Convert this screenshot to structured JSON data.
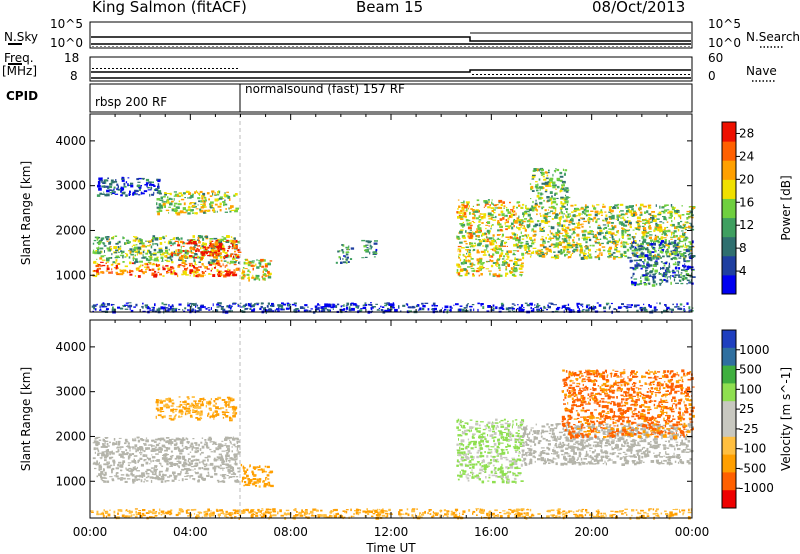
{
  "header": {
    "station": "King Salmon (fitACF)",
    "beam": "Beam 15",
    "date": "08/Oct/2013"
  },
  "sky_panel": {
    "left_label": "N.Sky",
    "left_ticks": [
      "10^5",
      "10^0"
    ],
    "right_label": "N.Search",
    "right_ticks": [
      "10^5",
      "10^0"
    ]
  },
  "freq_panel": {
    "left_label_1": "Freq.",
    "left_label_2": "[MHz]",
    "left_ticks": [
      "18",
      "8"
    ],
    "right_label": "Nave",
    "right_ticks": [
      "60",
      "0"
    ]
  },
  "cpid": {
    "label": "CPID",
    "segments": [
      "rbsp 200 RF",
      "normalsound (fast) 157 RF"
    ]
  },
  "x_axis": {
    "title": "Time UT",
    "ticks": [
      "00:00",
      "04:00",
      "08:00",
      "12:00",
      "16:00",
      "20:00",
      "00:00"
    ]
  },
  "colors": {
    "power_scale": [
      "#0000f0",
      "#1f3fa0",
      "#2f6f6f",
      "#3f9f60",
      "#6fcf3f",
      "#f0e000",
      "#ffa000",
      "#ff6000",
      "#ee1000"
    ],
    "velocity_scale": [
      "#ee0000",
      "#ff6000",
      "#ff9f00",
      "#ffbf40",
      "#c8c8c0",
      "#c8c8c0",
      "#8fdf50",
      "#3faf3f",
      "#2f6f9f",
      "#1f3fbf"
    ],
    "ground_scatter": "#b4b4aa"
  },
  "chart_data": [
    {
      "type": "heatmap",
      "title": "",
      "xlabel": "Time UT",
      "ylabel": "Slant Range [km]",
      "xlim": [
        "00:00",
        "24:00"
      ],
      "ylim": [
        180,
        4600
      ],
      "yticks": [
        1000,
        2000,
        3000,
        4000
      ],
      "colorbar": {
        "label": "Power [dB]",
        "ticks": [
          4,
          8,
          12,
          16,
          20,
          24,
          28
        ],
        "range": [
          0,
          30
        ]
      },
      "regions": [
        {
          "t0": 0.1,
          "t1": 5.9,
          "r0": 1000,
          "r1": 1300,
          "value": 24
        },
        {
          "t0": 0.1,
          "t1": 5.9,
          "r0": 1300,
          "r1": 1900,
          "value": 14
        },
        {
          "t0": 3.2,
          "t1": 5.9,
          "r0": 1400,
          "r1": 1800,
          "value": 26
        },
        {
          "t0": 2.6,
          "t1": 5.8,
          "r0": 2400,
          "r1": 2900,
          "value": 16
        },
        {
          "t0": 0.2,
          "t1": 2.8,
          "r0": 2800,
          "r1": 3200,
          "value": 5
        },
        {
          "t0": 6.0,
          "t1": 7.2,
          "r0": 900,
          "r1": 1400,
          "value": 18
        },
        {
          "t0": 9.8,
          "t1": 10.4,
          "r0": 1300,
          "r1": 1700,
          "value": 10
        },
        {
          "t0": 10.8,
          "t1": 11.4,
          "r0": 1400,
          "r1": 1800,
          "value": 10
        },
        {
          "t0": 14.6,
          "t1": 17.2,
          "r0": 1000,
          "r1": 2700,
          "value": 18
        },
        {
          "t0": 17.2,
          "t1": 24.0,
          "r0": 1400,
          "r1": 2600,
          "value": 16
        },
        {
          "t0": 17.5,
          "t1": 19.0,
          "r0": 2600,
          "r1": 3400,
          "value": 14
        },
        {
          "t0": 21.5,
          "t1": 24.0,
          "r0": 800,
          "r1": 1800,
          "value": 8
        },
        {
          "t0": 0.0,
          "t1": 24.0,
          "r0": 200,
          "r1": 400,
          "value": 4
        }
      ]
    },
    {
      "type": "heatmap",
      "title": "",
      "xlabel": "Time UT",
      "ylabel": "Slant Range [km]",
      "xlim": [
        "00:00",
        "24:00"
      ],
      "ylim": [
        180,
        4600
      ],
      "yticks": [
        1000,
        2000,
        3000,
        4000
      ],
      "colorbar": {
        "label": "Velocity [m s^-1]",
        "ticks": [
          1000,
          500,
          100,
          25,
          -25,
          -100,
          -500,
          -1000
        ]
      },
      "regions": [
        {
          "t0": 0.1,
          "t1": 5.9,
          "r0": 1000,
          "r1": 2000,
          "value": 0
        },
        {
          "t0": 2.6,
          "t1": 5.8,
          "r0": 2400,
          "r1": 2900,
          "value": -120
        },
        {
          "t0": 6.0,
          "t1": 7.2,
          "r0": 900,
          "r1": 1400,
          "value": -150
        },
        {
          "t0": 14.6,
          "t1": 17.2,
          "r0": 1000,
          "r1": 2400,
          "value": 120
        },
        {
          "t0": 17.2,
          "t1": 24.0,
          "r0": 1400,
          "r1": 2300,
          "value": 0
        },
        {
          "t0": 18.8,
          "t1": 24.0,
          "r0": 2000,
          "r1": 3500,
          "value": -600
        },
        {
          "t0": 0.0,
          "t1": 24.0,
          "r0": 200,
          "r1": 400,
          "value": -100
        }
      ]
    }
  ]
}
